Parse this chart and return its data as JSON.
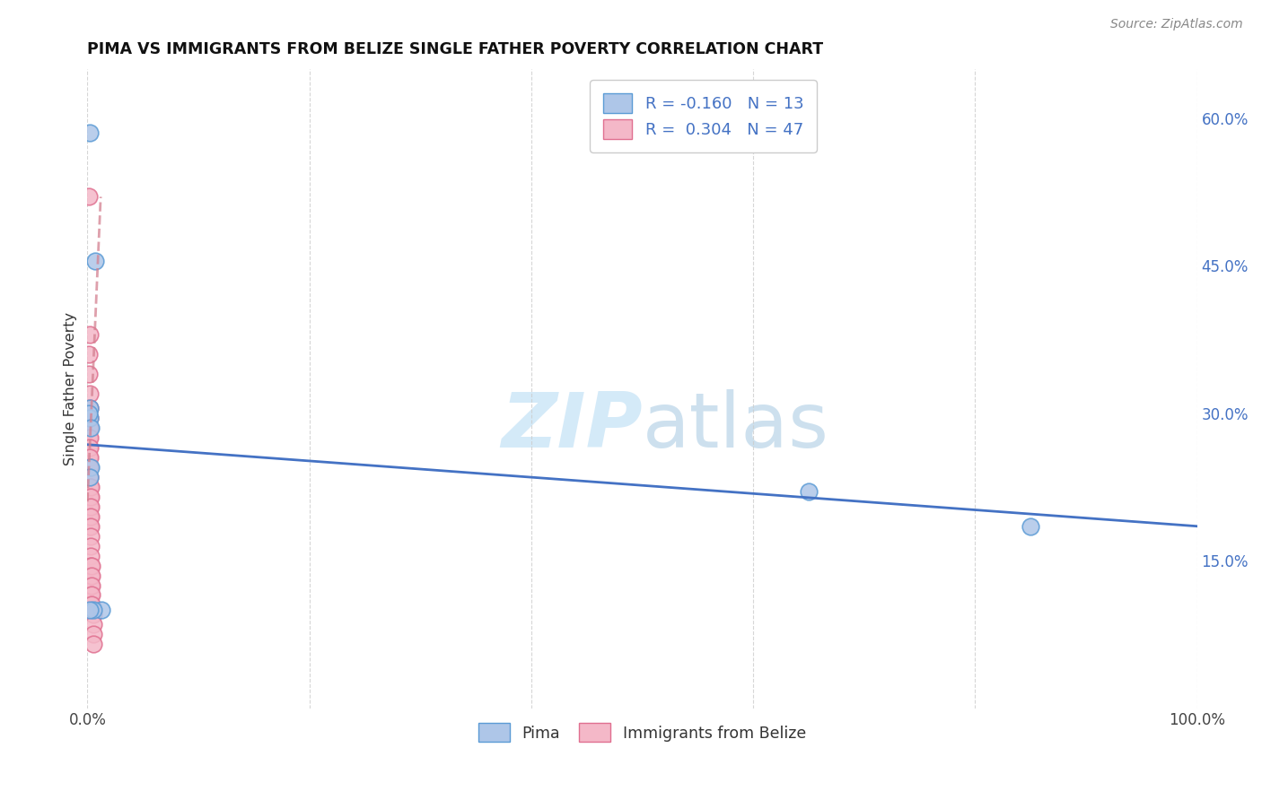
{
  "title": "PIMA VS IMMIGRANTS FROM BELIZE SINGLE FATHER POVERTY CORRELATION CHART",
  "source": "Source: ZipAtlas.com",
  "ylabel": "Single Father Poverty",
  "xlim": [
    0.0,
    1.0
  ],
  "ylim": [
    0.0,
    0.65
  ],
  "x_ticks": [
    0.0,
    0.2,
    0.4,
    0.6,
    0.8,
    1.0
  ],
  "x_tick_labels": [
    "0.0%",
    "",
    "",
    "",
    "",
    "100.0%"
  ],
  "y_ticks_right": [
    0.15,
    0.3,
    0.45,
    0.6
  ],
  "y_tick_right_labels": [
    "15.0%",
    "30.0%",
    "45.0%",
    "60.0%"
  ],
  "pima_R": -0.16,
  "pima_N": 13,
  "belize_R": 0.304,
  "belize_N": 47,
  "pima_color": "#aec6e8",
  "pima_edge_color": "#5b9bd5",
  "belize_color": "#f4b8c8",
  "belize_edge_color": "#e07090",
  "trend_pima_color": "#4472c4",
  "trend_belize_color": "#d48090",
  "watermark_color": "#d0e8f8",
  "pima_x": [
    0.002,
    0.007,
    0.002,
    0.002,
    0.001,
    0.003,
    0.003,
    0.002,
    0.65,
    0.85,
    0.013,
    0.005,
    0.002
  ],
  "pima_y": [
    0.585,
    0.455,
    0.305,
    0.295,
    0.3,
    0.285,
    0.245,
    0.235,
    0.22,
    0.185,
    0.1,
    0.1,
    0.1
  ],
  "belize_x": [
    0.001,
    0.001,
    0.001,
    0.001,
    0.001,
    0.001,
    0.001,
    0.001,
    0.001,
    0.001,
    0.002,
    0.002,
    0.002,
    0.002,
    0.002,
    0.002,
    0.002,
    0.002,
    0.002,
    0.002,
    0.002,
    0.002,
    0.002,
    0.002,
    0.002,
    0.003,
    0.003,
    0.003,
    0.003,
    0.003,
    0.003,
    0.003,
    0.003,
    0.003,
    0.003,
    0.003,
    0.003,
    0.003,
    0.004,
    0.004,
    0.004,
    0.004,
    0.004,
    0.005,
    0.005,
    0.005,
    0.005
  ],
  "belize_y": [
    0.52,
    0.36,
    0.34,
    0.295,
    0.285,
    0.275,
    0.265,
    0.255,
    0.245,
    0.235,
    0.38,
    0.32,
    0.305,
    0.295,
    0.285,
    0.275,
    0.265,
    0.255,
    0.245,
    0.235,
    0.225,
    0.215,
    0.205,
    0.195,
    0.185,
    0.225,
    0.215,
    0.205,
    0.195,
    0.185,
    0.175,
    0.165,
    0.155,
    0.145,
    0.135,
    0.125,
    0.115,
    0.105,
    0.145,
    0.135,
    0.125,
    0.115,
    0.105,
    0.095,
    0.085,
    0.075,
    0.065
  ],
  "pima_trend_x0": 0.0,
  "pima_trend_y0": 0.268,
  "pima_trend_x1": 1.0,
  "pima_trend_y1": 0.185,
  "belize_trend_x0": 0.0,
  "belize_trend_y0": 0.21,
  "belize_trend_x1": 0.012,
  "belize_trend_y1": 0.52
}
